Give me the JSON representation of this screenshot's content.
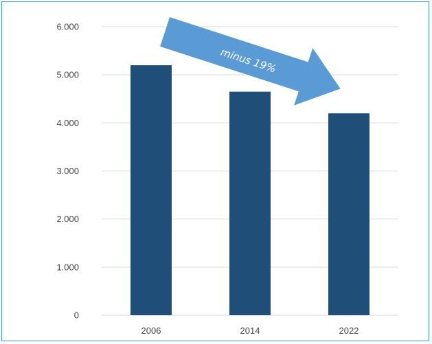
{
  "chart_data": {
    "type": "bar",
    "categories": [
      "2006",
      "2014",
      "2022"
    ],
    "values": [
      5200,
      4650,
      4200
    ],
    "ylim": [
      0,
      6000
    ],
    "yticks": [
      0,
      1000,
      2000,
      3000,
      4000,
      5000,
      6000
    ],
    "ytick_labels": [
      "0",
      "1.000",
      "2.000",
      "3.000",
      "4.000",
      "5.000",
      "6.000"
    ],
    "grid": true,
    "bar_color": "#1f4e79",
    "grid_color": "#d9d9d9",
    "annotation": {
      "text": "minus 19%",
      "shape": "arrow-down-right",
      "color": "#5b9bd5"
    }
  }
}
